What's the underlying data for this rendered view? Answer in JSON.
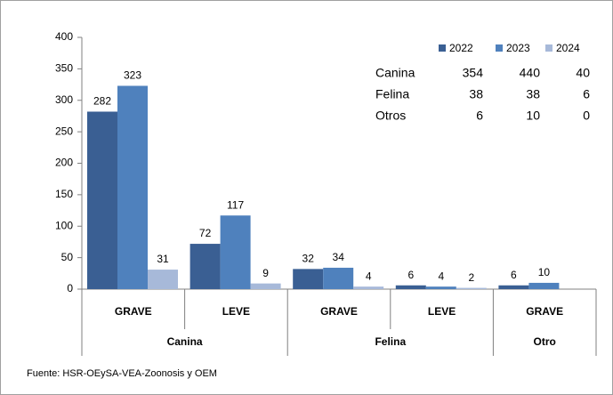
{
  "chart_data": {
    "type": "bar",
    "groups": [
      {
        "name": "Canina",
        "categories": [
          "GRAVE",
          "LEVE"
        ]
      },
      {
        "name": "Felina",
        "categories": [
          "GRAVE",
          "LEVE"
        ]
      },
      {
        "name": "Otro",
        "categories": [
          "GRAVE"
        ]
      }
    ],
    "series": [
      {
        "name": "2022",
        "color": "#3a5f93",
        "values": [
          282,
          72,
          32,
          6,
          6
        ]
      },
      {
        "name": "2023",
        "color": "#4f81bd",
        "values": [
          323,
          117,
          34,
          4,
          10
        ]
      },
      {
        "name": "2024",
        "color": "#a7b9d9",
        "values": [
          31,
          9,
          4,
          2,
          null
        ]
      }
    ],
    "ylim": [
      0,
      400
    ],
    "yticks": [
      0,
      50,
      100,
      150,
      200,
      250,
      300,
      350,
      400
    ],
    "table": {
      "rows": [
        {
          "name": "Canina",
          "values": [
            354,
            440,
            40
          ]
        },
        {
          "name": "Felina",
          "values": [
            38,
            38,
            6
          ]
        },
        {
          "name": "Otros",
          "values": [
            6,
            10,
            0
          ]
        }
      ]
    },
    "source": "Fuente: HSR-OEySA-VEA-Zoonosis y OEM"
  }
}
